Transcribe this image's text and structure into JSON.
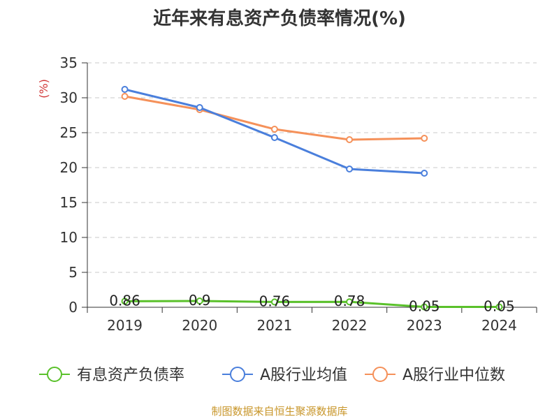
{
  "chart_data": {
    "type": "line",
    "title": "近年来有息资产负债率情况(%)",
    "ylabel": "(%)",
    "categories": [
      "2019",
      "2020",
      "2021",
      "2022",
      "2023",
      "2024"
    ],
    "ylim": [
      0,
      35
    ],
    "yticks": [
      "0",
      "5",
      "10",
      "15",
      "20",
      "25",
      "30",
      "35"
    ],
    "grid": true,
    "legend_position": "bottom",
    "series": [
      {
        "name": "有息资产负债率",
        "color": "#5ac12b",
        "values": [
          0.86,
          0.9,
          0.76,
          0.78,
          0.05,
          0.05
        ],
        "labels": [
          "0.86",
          "0.9",
          "0.76",
          "0.78",
          "0.05",
          "0.05"
        ]
      },
      {
        "name": "A股行业均值",
        "color": "#4a7fdc",
        "values": [
          31.2,
          28.6,
          24.3,
          19.8,
          19.2,
          null
        ]
      },
      {
        "name": "A股行业中位数",
        "color": "#f5915a",
        "values": [
          30.2,
          28.3,
          25.5,
          24.0,
          24.2,
          null
        ]
      }
    ]
  },
  "source": "制图数据来自恒生聚源数据库",
  "colors": {
    "source_text": "#c8962a",
    "unit_label": "#d13535",
    "axis": "#333333",
    "grid": "#c8c8c8"
  }
}
